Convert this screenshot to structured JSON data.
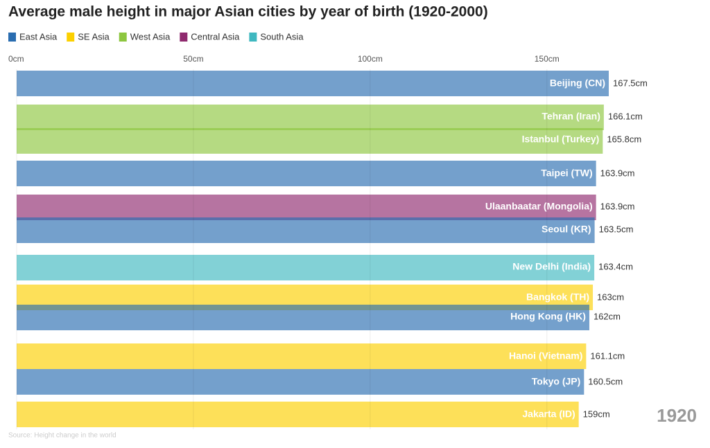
{
  "chart_data": {
    "type": "bar",
    "orientation": "horizontal",
    "title": "Average male height in major Asian cities by year of birth (1920-2000)",
    "legend": [
      {
        "name": "East Asia",
        "color": "#2a6db0"
      },
      {
        "name": "SE Asia",
        "color": "#fcd000"
      },
      {
        "name": "West Asia",
        "color": "#8dc63f"
      },
      {
        "name": "Central Asia",
        "color": "#8f2a6e"
      },
      {
        "name": "South Asia",
        "color": "#3fb8c0"
      }
    ],
    "categories": [
      "Beijing (CN)",
      "Tehran (Iran)",
      "Istanbul (Turkey)",
      "Taipei (TW)",
      "Ulaanbaatar (Mongolia)",
      "Seoul (KR)",
      "New Delhi (India)",
      "Bangkok (TH)",
      "Hong Kong (HK)",
      "Hanoi (Vietnam)",
      "Tokyo (JP)",
      "Jakarta (ID)"
    ],
    "values": [
      167.5,
      166.1,
      165.8,
      163.9,
      163.9,
      163.5,
      163.4,
      163,
      162,
      161.1,
      160.5,
      159
    ],
    "value_labels": [
      "167.5cm",
      "166.1cm",
      "165.8cm",
      "163.9cm",
      "163.9cm",
      "163.5cm",
      "163.4cm",
      "163cm",
      "162cm",
      "161.1cm",
      "160.5cm",
      "159cm"
    ],
    "colors": [
      "#2a6db0",
      "#8dc63f",
      "#8dc63f",
      "#2a6db0",
      "#8f2a6e",
      "#2a6db0",
      "#3fb8c0",
      "#fcd000",
      "#2a6db0",
      "#fcd000",
      "#2a6db0",
      "#fcd000"
    ],
    "xlim": [
      0,
      167.5
    ],
    "xticks": [
      {
        "value": 0,
        "label": "0cm"
      },
      {
        "value": 50,
        "label": "50cm"
      },
      {
        "value": 100,
        "label": "100cm"
      },
      {
        "value": 150,
        "label": "150cm"
      }
    ],
    "grid": true,
    "year": "1920",
    "source": "Source: Height change in the world"
  }
}
